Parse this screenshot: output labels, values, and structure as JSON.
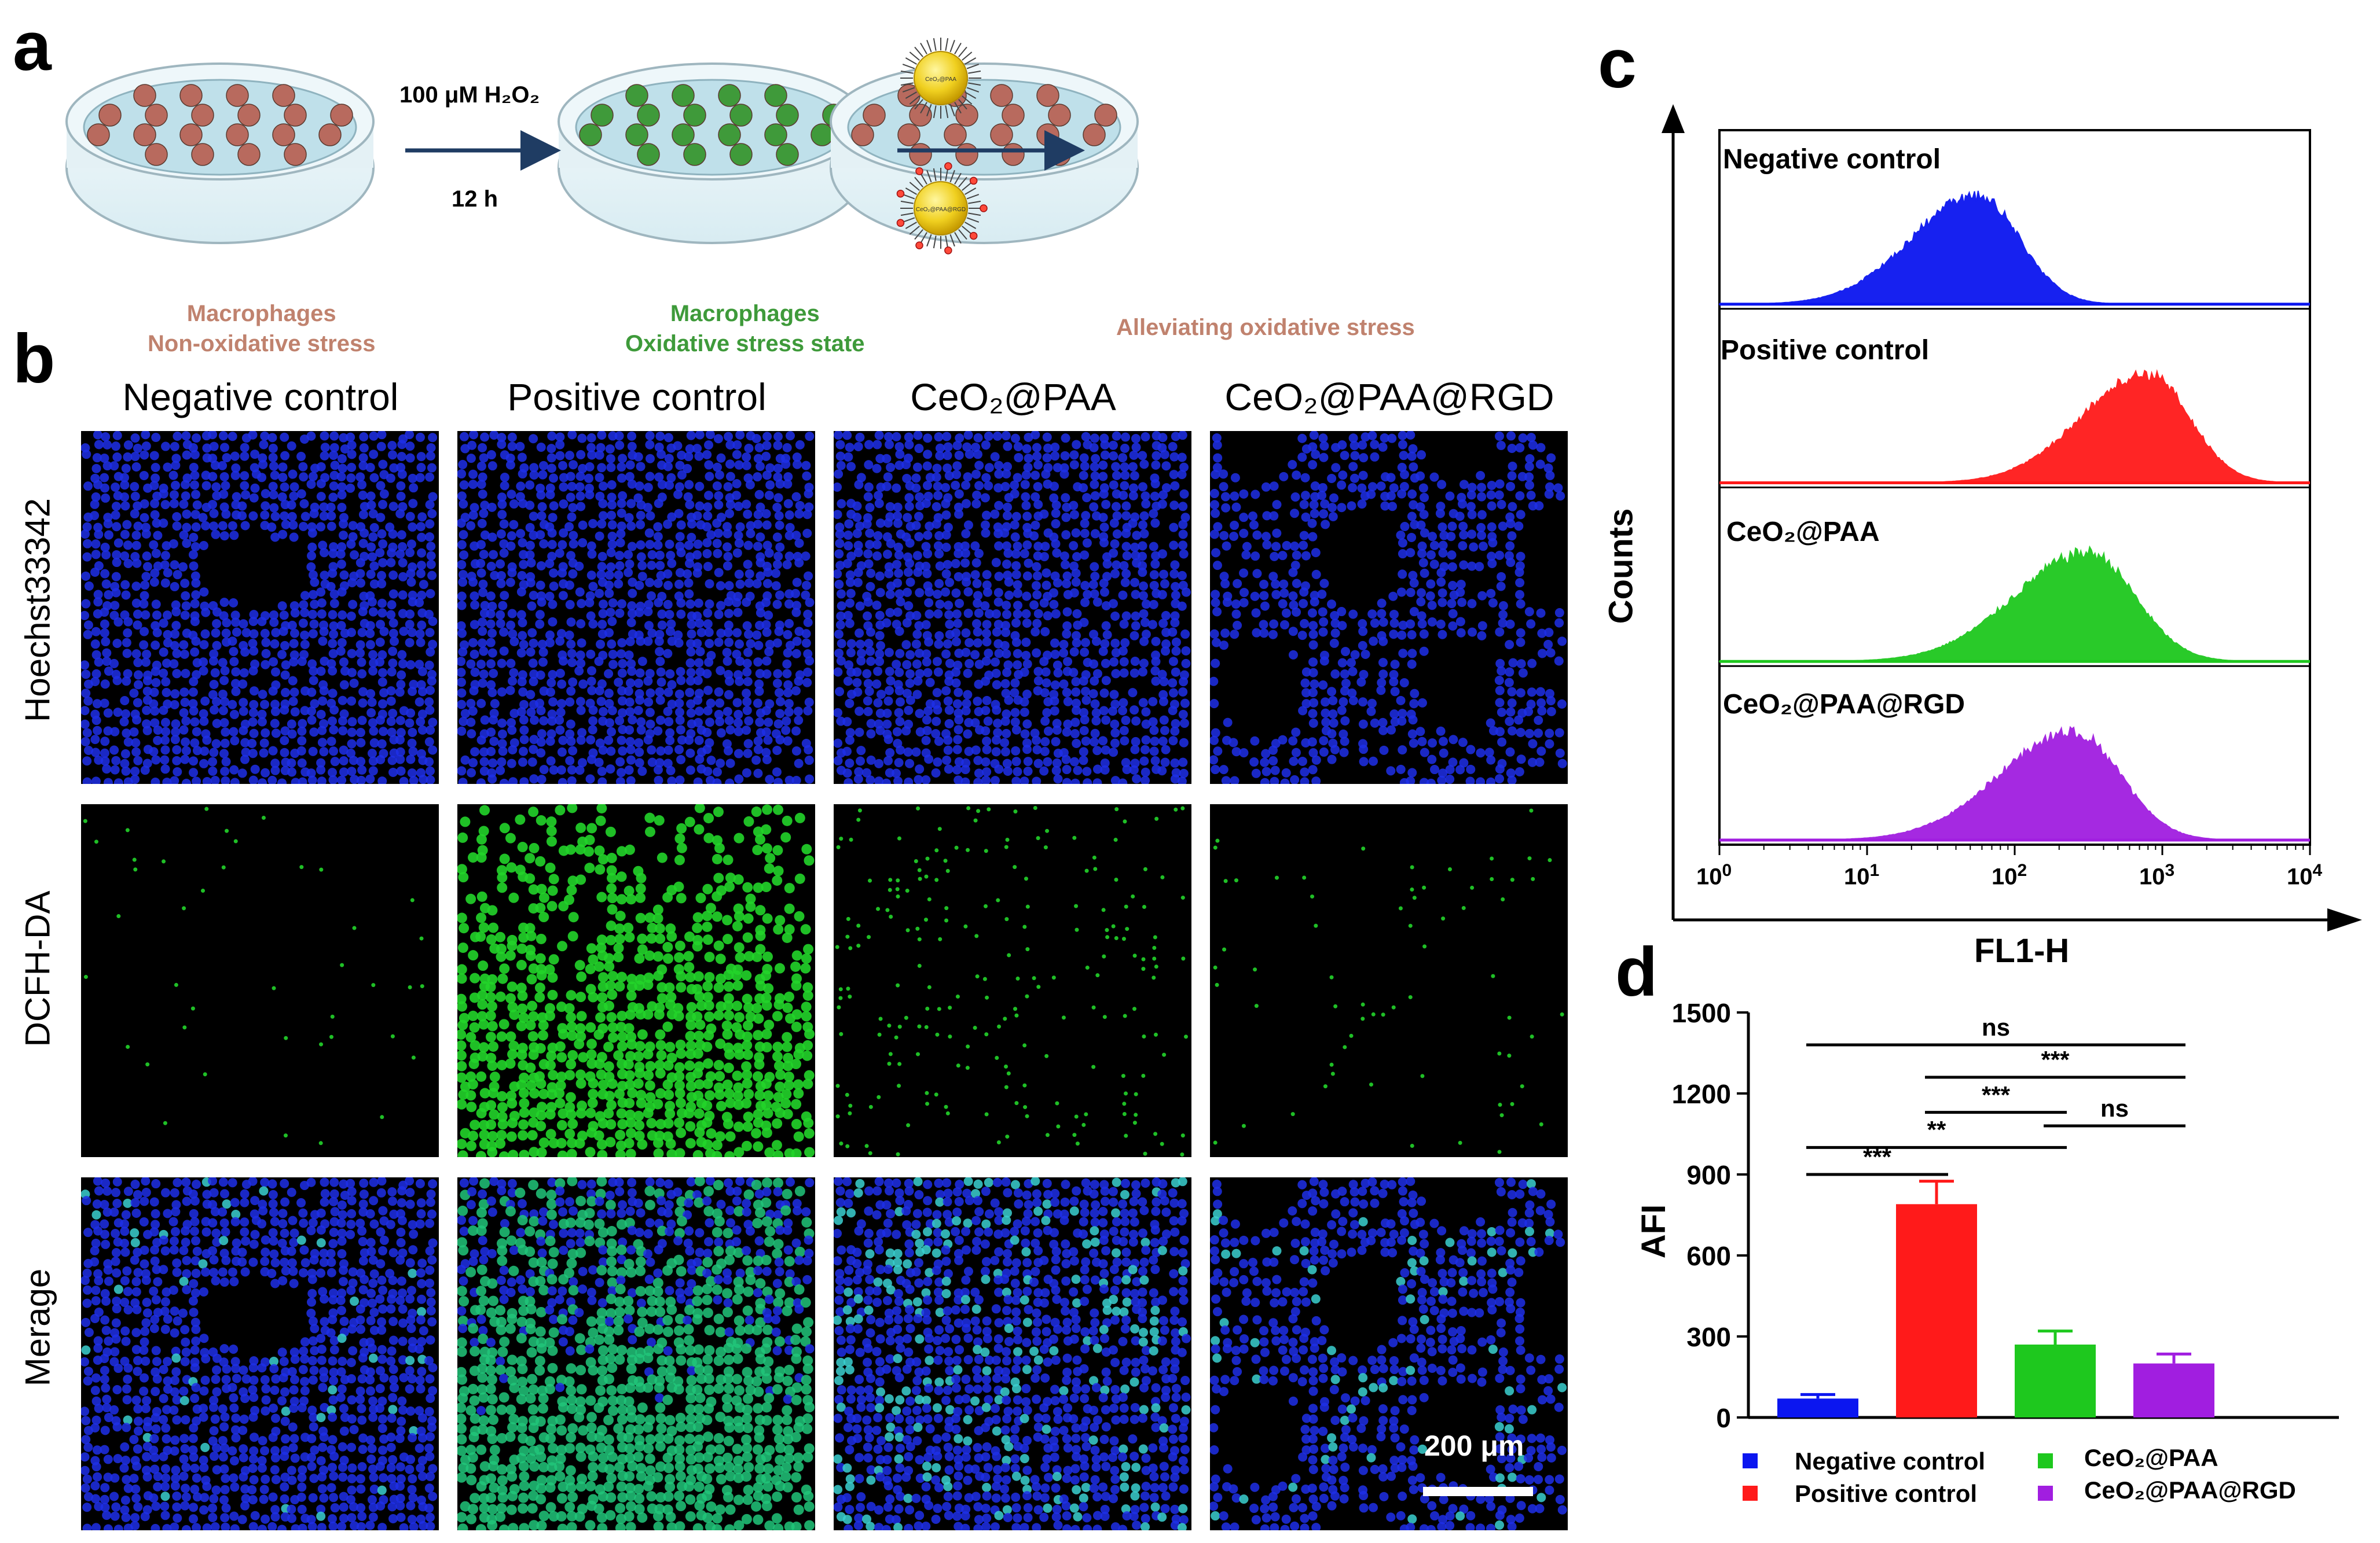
{
  "panels": {
    "a": "a",
    "b": "b",
    "c": "c",
    "d": "d"
  },
  "schematic": {
    "dish1_caption": [
      "Macrophages",
      "Non-oxidative stress"
    ],
    "dish2_caption": [
      "Macrophages",
      "Oxidative stress state"
    ],
    "dish3_caption": "Alleviating oxidative stress",
    "arrow1_top": "100 μM H₂O₂",
    "arrow1_bottom": "12 h",
    "particle1_label": "CeO₂@PAA",
    "particle2_label": "CeO₂@PAA@RGD",
    "colors": {
      "normal_cell": "#b86a5e",
      "stressed_cell": "#3f9a3a",
      "caption_brown": "#c0826e",
      "caption_green": "#3e9a3a"
    }
  },
  "micrographs": {
    "columns": [
      "Negative control",
      "Positive control",
      "CeO₂@PAA",
      "CeO₂@PAA@RGD"
    ],
    "rows": [
      "Hoechst33342",
      "DCFH-DA",
      "Merage"
    ],
    "scale_bar": "200 μm",
    "green_intensity": [
      0.03,
      0.9,
      0.18,
      0.12
    ]
  },
  "chart_data": [
    {
      "type": "histogram",
      "panel": "c",
      "xlabel": "FL1-H",
      "ylabel": "Counts",
      "x_scale": "log",
      "xlim": [
        1,
        10000
      ],
      "x_ticks": [
        {
          "base": "10",
          "exp": "0"
        },
        {
          "base": "10",
          "exp": "1"
        },
        {
          "base": "10",
          "exp": "2"
        },
        {
          "base": "10",
          "exp": "3"
        },
        {
          "base": "10",
          "exp": "4"
        }
      ],
      "series": [
        {
          "name": "Negative control",
          "color": "#0b16f0",
          "peak_log10": 1.75,
          "spread": 0.45
        },
        {
          "name": "Positive control",
          "color": "#ff1a1a",
          "peak_log10": 2.9,
          "spread": 0.45
        },
        {
          "name": "CeO₂@PAA",
          "color": "#1ec81e",
          "peak_log10": 2.5,
          "spread": 0.5
        },
        {
          "name": "CeO₂@PAA@RGD",
          "color": "#a11ee0",
          "peak_log10": 2.4,
          "spread": 0.5
        }
      ]
    },
    {
      "type": "bar",
      "panel": "d",
      "ylabel": "AFI",
      "ylim": [
        0,
        1500
      ],
      "y_ticks": [
        "0",
        "300",
        "600",
        "900",
        "1200",
        "1500"
      ],
      "categories": [
        "Negative control",
        "Positive control",
        "CeO₂@PAA",
        "CeO₂@PAA@RGD"
      ],
      "legend_labels": [
        "Negative control",
        "Positive control",
        "CeO₂@PAA",
        "CeO₂@PAA@RGD"
      ],
      "values": [
        70,
        790,
        270,
        200
      ],
      "errors": [
        15,
        85,
        50,
        35
      ],
      "colors": [
        "#0b16f0",
        "#ff1a1a",
        "#1ec81e",
        "#a11ee0"
      ],
      "significance": [
        {
          "from": 0,
          "to": 3,
          "label": "ns",
          "level": 1380
        },
        {
          "from": 1,
          "to": 3,
          "label": "***",
          "level": 1260
        },
        {
          "from": 1,
          "to": 2,
          "label": "***",
          "level": 1130
        },
        {
          "from": 2,
          "to": 3,
          "label": "ns",
          "level": 1080
        },
        {
          "from": 0,
          "to": 2,
          "label": "**",
          "level": 1000
        },
        {
          "from": 0,
          "to": 1,
          "label": "***",
          "level": 900
        }
      ]
    }
  ]
}
